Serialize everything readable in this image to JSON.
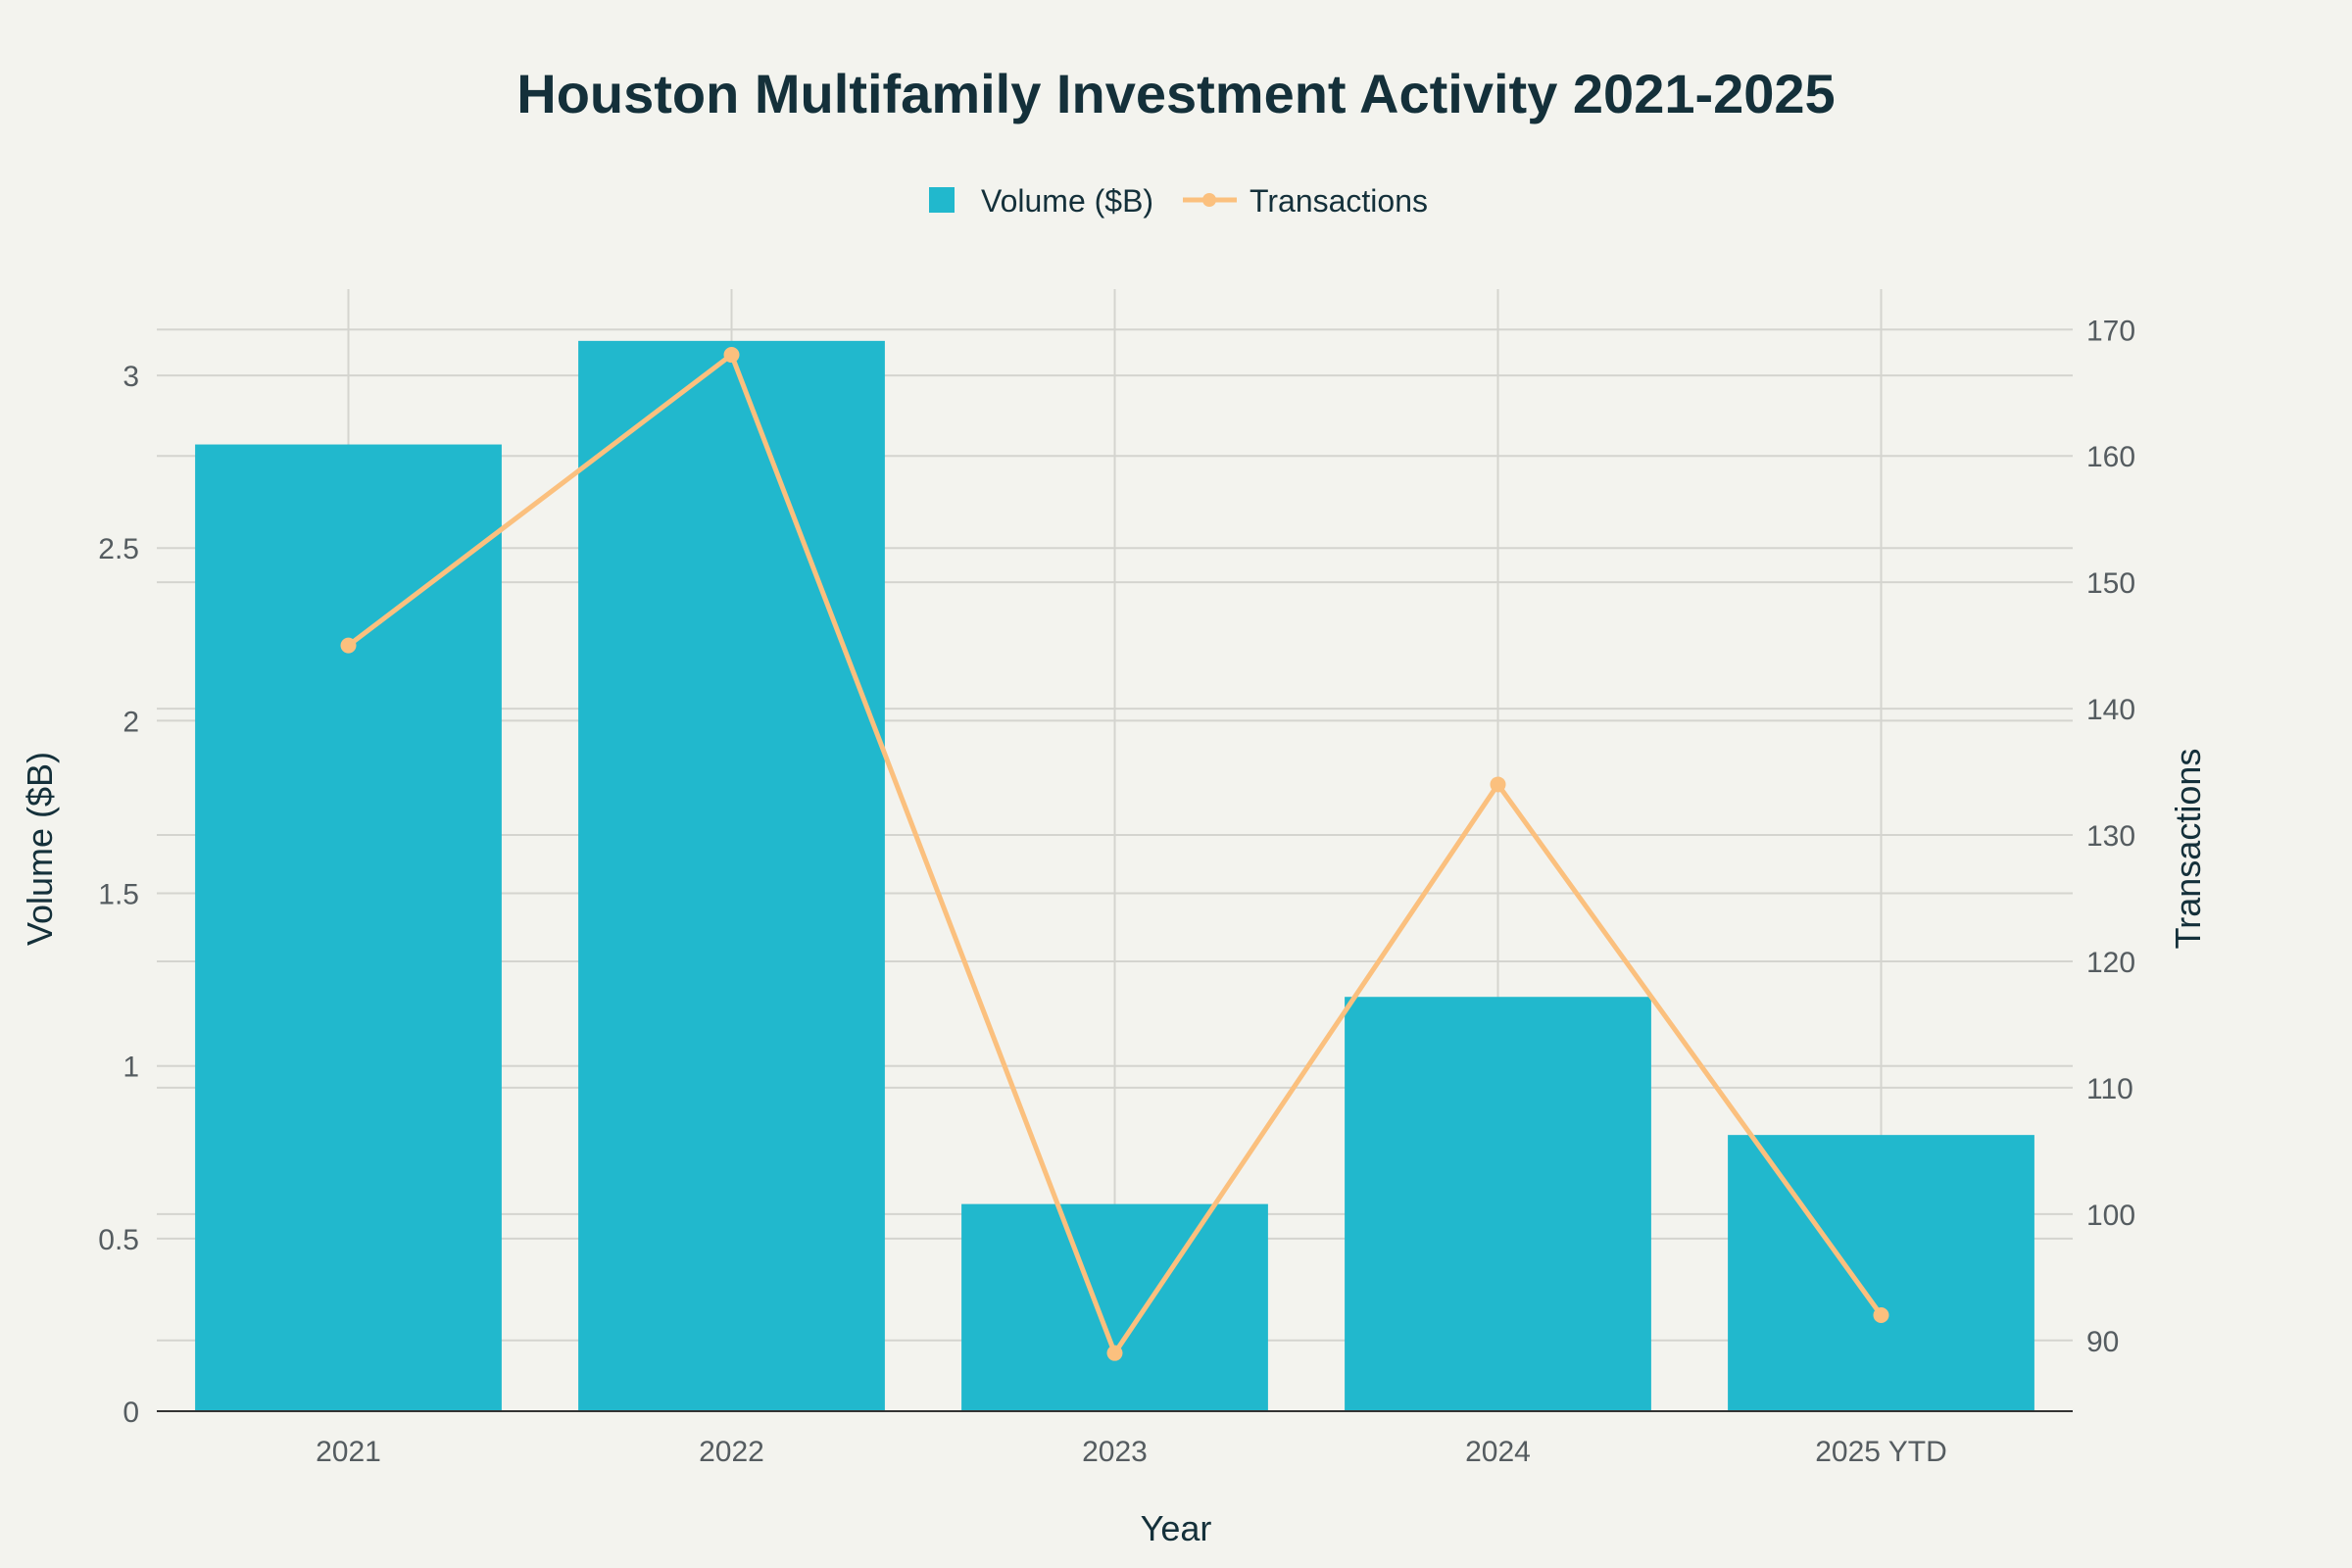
{
  "chart_data": {
    "type": "bar",
    "title": "Houston Multifamily Investment Activity 2021-2025",
    "xlabel": "Year",
    "ylabel": "Volume ($B)",
    "y2label": "Transactions",
    "categories": [
      "2021",
      "2022",
      "2023",
      "2024",
      "2025 YTD"
    ],
    "series": [
      {
        "name": "Volume ($B)",
        "type": "bar",
        "axis": "left",
        "color": "#21b8cd",
        "values": [
          2.8,
          3.1,
          0.6,
          1.2,
          0.8
        ]
      },
      {
        "name": "Transactions",
        "type": "line",
        "axis": "right",
        "color": "#fbc07e",
        "values": [
          145,
          168,
          89,
          134,
          92
        ]
      }
    ],
    "ylim": [
      0,
      3.25
    ],
    "yticks": [
      0,
      0.5,
      1,
      1.5,
      2,
      2.5,
      3
    ],
    "ytick_labels": [
      "0",
      "0.5",
      "1",
      "1.5",
      "2",
      "2.5",
      "3"
    ],
    "y2lim": [
      84.4,
      173.2
    ],
    "y2ticks": [
      90,
      100,
      110,
      120,
      130,
      140,
      150,
      160,
      170
    ],
    "y2tick_labels": [
      "90",
      "100",
      "110",
      "120",
      "130",
      "140",
      "150",
      "160",
      "170"
    ],
    "grid": true,
    "legend_position": "top-center"
  }
}
